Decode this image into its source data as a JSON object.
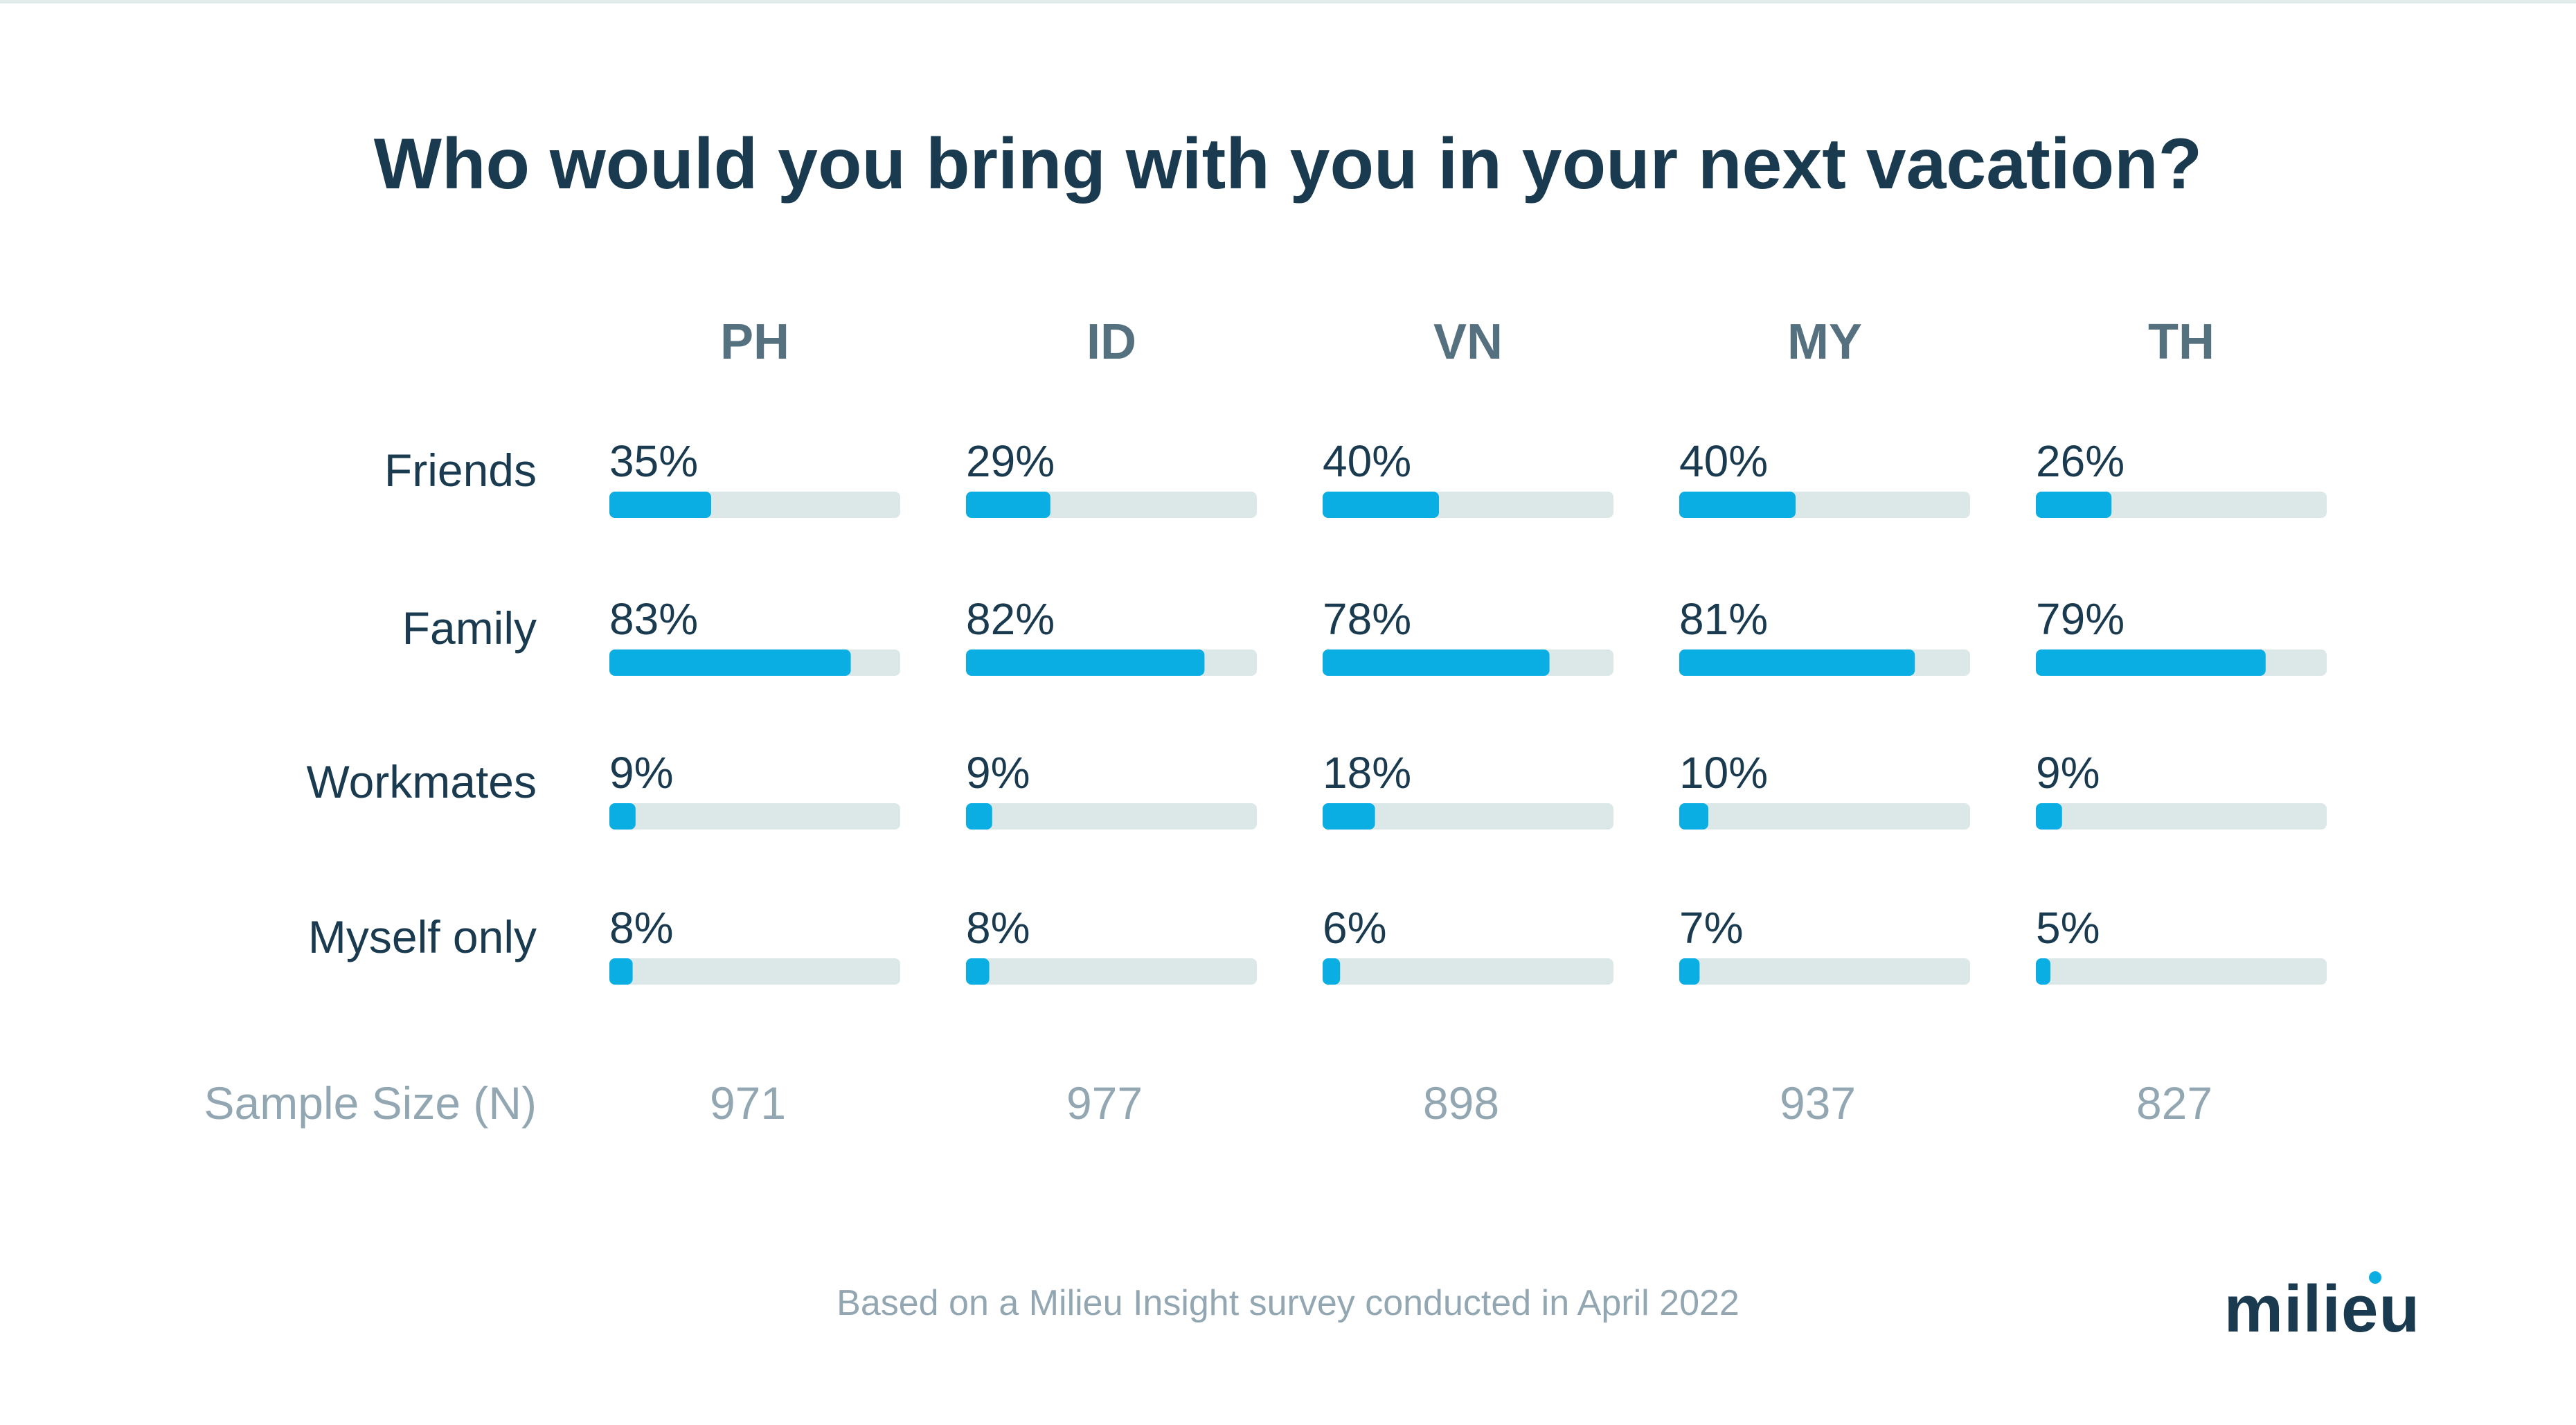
{
  "chart_data": {
    "type": "bar",
    "title": "Who would you bring with you in your next vacation?",
    "columns": [
      "PH",
      "ID",
      "VN",
      "MY",
      "TH"
    ],
    "rows": [
      {
        "label": "Friends",
        "values": [
          35,
          29,
          40,
          40,
          26
        ],
        "labels": [
          "35%",
          "29%",
          "40%",
          "40%",
          "26%"
        ]
      },
      {
        "label": "Family",
        "values": [
          83,
          82,
          78,
          81,
          79
        ],
        "labels": [
          "83%",
          "82%",
          "78%",
          "81%",
          "79%"
        ]
      },
      {
        "label": "Workmates",
        "values": [
          9,
          9,
          18,
          10,
          9
        ],
        "labels": [
          "9%",
          "9%",
          "18%",
          "10%",
          "9%"
        ]
      },
      {
        "label": "Myself only",
        "values": [
          8,
          8,
          6,
          7,
          5
        ],
        "labels": [
          "8%",
          "8%",
          "6%",
          "7%",
          "5%"
        ]
      }
    ],
    "sample_size_label": "Sample Size (N)",
    "sample_sizes": [
      "971",
      "977",
      "898",
      "937",
      "827"
    ],
    "ylim": [
      0,
      100
    ],
    "bar_color": "#0aaee3",
    "track_color": "#dbe8e7"
  },
  "footnote": "Based on a Milieu Insight survey conducted in April 2022",
  "logo_text": "milieu",
  "colors": {
    "title": "#1a3a4f",
    "column_header": "#55707f",
    "row_label": "#1a3a4f",
    "value_label": "#1a3a4f",
    "sample": "#93a7b3",
    "logo_dot": "#0aaee3"
  }
}
